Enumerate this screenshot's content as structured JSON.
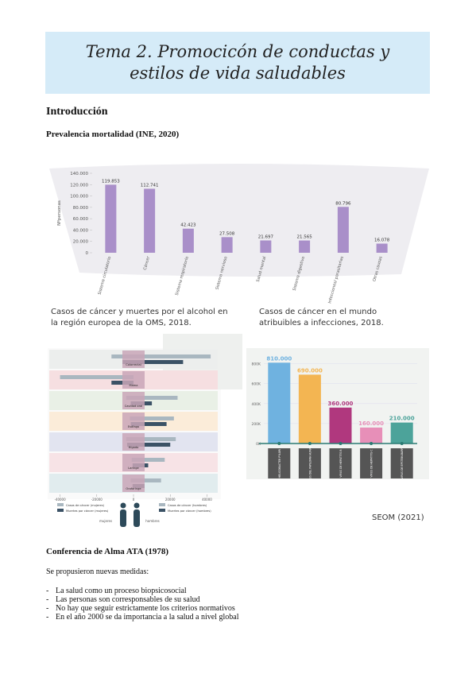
{
  "header": {
    "title": "Tema 2. Promocicón de conductas y estilos de vida saludables"
  },
  "intro_heading": "Introducción",
  "charts": [
    {
      "type": "bar",
      "title": "Prevalencia mortalidad (INE, 2020)",
      "y_label": "Nºpersonas",
      "color": "#a98fc9",
      "categories": [
        "Sistema circulatorio",
        "Cáncer",
        "Sistema respiratorio",
        "Sistema nervioso",
        "Salud mental",
        "Sistema digestivo",
        "Infecciones/ parasitarias",
        "Otras causas"
      ],
      "values": [
        119853,
        112741,
        42423,
        27508,
        21697,
        21565,
        80796,
        16078
      ],
      "value_labels": [
        "119.853",
        "112.741",
        "42.423",
        "27.508",
        "21.697",
        "21.565",
        "80.796",
        "16.078"
      ],
      "ylim": [
        0,
        140000
      ],
      "yticks": [
        0,
        {
          "value": 20000,
          "label": "20.000"
        },
        {
          "value": 40000,
          "label": "40.000"
        },
        {
          "value": 60000,
          "label": "60.000"
        },
        {
          "value": 80000,
          "label": "80.000"
        },
        {
          "value": 100000,
          "label": "100.000"
        },
        {
          "value": 120000,
          "label": "120.000"
        },
        {
          "value": 140000,
          "label": "140.000"
        }
      ]
    },
    {
      "type": "butterfly",
      "title": "Casos de cáncer y muertes por el alcohol en la región europea de la OMS, 2018.",
      "categories": [
        "Colorrectal",
        "Mama",
        "Cavidad oral",
        "Esófago",
        "Hígado",
        "Laringe",
        "Orofaringe"
      ],
      "row_colors": [
        "#eceeed",
        "#f6dfe1",
        "#e9f0e6",
        "#fbecd9",
        "#e2e4f0",
        "#f7e3e6",
        "#e1ecee"
      ],
      "series": [
        {
          "name": "Casos de cáncer (mujeres)",
          "color": "#a9b7c0",
          "values": [
            -12000,
            -40000,
            -4000,
            -2000,
            -4000,
            -1000,
            -1500
          ]
        },
        {
          "name": "Muertes por cáncer (mujeres)",
          "color": "#3b5266",
          "values": [
            -6000,
            -12000,
            -1500,
            -1500,
            -3500,
            -500,
            -500
          ]
        },
        {
          "name": "Casos de cáncer (hombres)",
          "color": "#a9b7c0",
          "values": [
            42000,
            0,
            24000,
            22000,
            23000,
            17000,
            15000
          ]
        },
        {
          "name": "Muertes por cáncer (hombres)",
          "color": "#3b5266",
          "values": [
            27000,
            0,
            10000,
            18000,
            20000,
            8000,
            6000
          ]
        }
      ],
      "xlim": [
        -45000,
        45000
      ],
      "xticks": [
        -40000,
        -20000,
        0,
        20000,
        40000
      ],
      "group_labels": [
        "mujeres",
        "hombres"
      ]
    },
    {
      "type": "bar",
      "title": "Casos de cáncer en el mundo atribuibles a infecciones, 2018.",
      "categories": [
        "HELICOBACTER PYLORI",
        "VIRUS DEL PAPILOMA HUMANO",
        "VIRUS DE HEPATITIS B",
        "VIRUS DE HEPATITIS C",
        "VIRUS DE EPSTEIN-BARR"
      ],
      "colors": [
        "#6fb2e0",
        "#f3b552",
        "#b0387e",
        "#e78fb8",
        "#4ca39a"
      ],
      "values": [
        810000,
        690000,
        360000,
        160000,
        210000
      ],
      "value_labels": [
        "810.000",
        "690.000",
        "360.000",
        "160.000",
        "210.000"
      ],
      "ylim": [
        0,
        900000
      ],
      "yticks": [
        {
          "value": 0,
          "label": "0K"
        },
        {
          "value": 200000,
          "label": "200K"
        },
        {
          "value": 400000,
          "label": "400K"
        },
        {
          "value": 600000,
          "label": "600K"
        },
        {
          "value": 800000,
          "label": "800K"
        }
      ]
    }
  ],
  "source": "SEOM (2021)",
  "conference": {
    "heading": "Conferencia de Alma ATA (1978)",
    "intro": "Se propusieron nuevas medidas:",
    "items": [
      "La salud como un proceso biopsicosocial",
      "Las personas son corresponsables de su salud",
      "No hay que seguir estrictamente los criterios normativos",
      "En el año 2000 se da importancia a la salud a nivel global"
    ]
  }
}
